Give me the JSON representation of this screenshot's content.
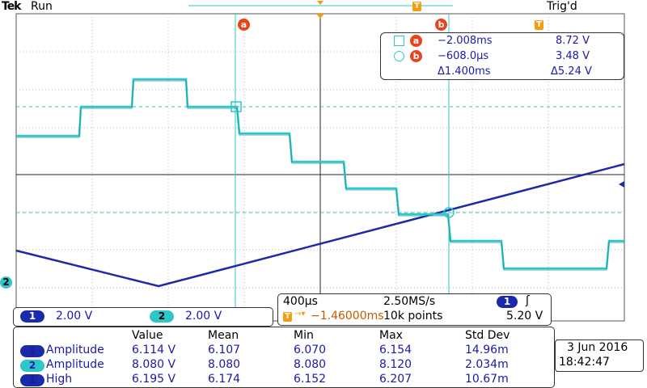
{
  "header": {
    "brand": "Tek",
    "run_state": "Run",
    "trigger_state": "Trig'd"
  },
  "markers": {
    "cursor_a": "a",
    "cursor_b": "b",
    "trigger": "T",
    "ch2_ground": "2"
  },
  "cursor_readout": {
    "row_a": {
      "time": "−2.008ms",
      "volt": "8.72 V"
    },
    "row_b": {
      "time": "−608.0µs",
      "volt": "3.48 V"
    },
    "delta": {
      "time": "Δ1.400ms",
      "volt": "Δ5.24 V"
    }
  },
  "channels": [
    {
      "num": "1",
      "scale": "2.00 V"
    },
    {
      "num": "2",
      "scale": "2.00 V"
    }
  ],
  "timebase": {
    "time_div": "400µs",
    "sample_rate": "2.50MS/s",
    "position": "−1.46000ms",
    "record_length": "10k points",
    "trig_channel": "1",
    "trig_level": "5.20 V"
  },
  "measurements": {
    "headers": [
      "Value",
      "Mean",
      "Min",
      "Max",
      "Std Dev"
    ],
    "rows": [
      {
        "ch": "1",
        "name": "Amplitude",
        "value": "6.114 V",
        "mean": "6.107",
        "min": "6.070",
        "max": "6.154",
        "std": "14.96m"
      },
      {
        "ch": "2",
        "name": "Amplitude",
        "value": "8.080 V",
        "mean": "8.080",
        "min": "8.080",
        "max": "8.120",
        "std": "2.034m"
      },
      {
        "ch": "1",
        "name": "High",
        "value": "6.195 V",
        "mean": "6.174",
        "min": "6.152",
        "max": "6.207",
        "std": "10.67m"
      }
    ]
  },
  "datetime": {
    "date": "3 Jun 2016",
    "time": "18:42:47"
  },
  "colors": {
    "ch1": "#1a2aa8",
    "ch2": "#2ec7c9",
    "cursor": "#2ec7c9",
    "marker": "#e8431b",
    "trigger": "#f39c12"
  }
}
